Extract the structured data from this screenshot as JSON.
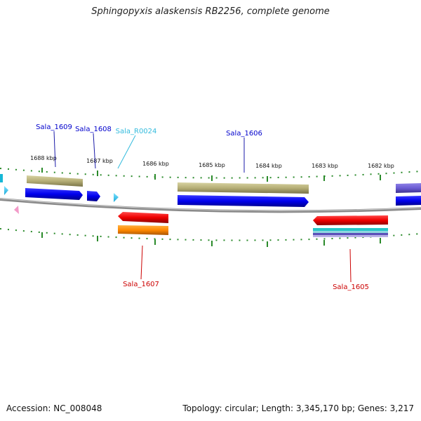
{
  "title": "Sphingopyxis alaskensis RB2256, complete genome",
  "footer": {
    "accession": "Accession: NC_008048",
    "summary": "Topology: circular; Length: 3,345,170 bp; Genes: 3,217"
  },
  "scale": {
    "labels": [
      "1688 kbp",
      "1687 kbp",
      "1686 kbp",
      "1685 kbp",
      "1684 kbp",
      "1683 kbp",
      "1682 kbp"
    ]
  },
  "genes": {
    "forward": [
      {
        "name": "Sala_1609",
        "color": "#0000cc"
      },
      {
        "name": "Sala_1608",
        "color": "#0000cc"
      },
      {
        "name": "Sala_R0024",
        "color": "#33bbdd"
      },
      {
        "name": "Sala_1606",
        "color": "#0000cc"
      }
    ],
    "reverse": [
      {
        "name": "Sala_1607",
        "color": "#cc0000"
      },
      {
        "name": "Sala_1605",
        "color": "#cc0000"
      }
    ]
  },
  "colors": {
    "cds_forward": "#0000ee",
    "cds_reverse": "#ee0000",
    "gene_track": "#b8b27a",
    "rrna_orange": "#ff8800",
    "trna": "#33ccff",
    "backbone": "#777777",
    "ticks": "#2a8a2a"
  }
}
